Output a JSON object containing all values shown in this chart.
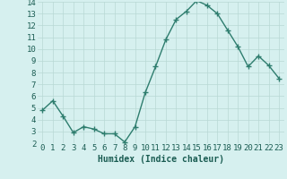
{
  "xlabel": "Humidex (Indice chaleur)",
  "x": [
    0,
    1,
    2,
    3,
    4,
    5,
    6,
    7,
    8,
    9,
    10,
    11,
    12,
    13,
    14,
    15,
    16,
    17,
    18,
    19,
    20,
    21,
    22,
    23
  ],
  "y": [
    4.8,
    5.6,
    4.3,
    2.9,
    3.4,
    3.2,
    2.8,
    2.8,
    2.1,
    3.4,
    6.3,
    8.5,
    10.8,
    12.5,
    13.2,
    14.1,
    13.7,
    13.0,
    11.6,
    10.2,
    8.5,
    9.4,
    8.6,
    7.5
  ],
  "line_color": "#2e7d6e",
  "marker": "+",
  "marker_size": 4,
  "bg_color": "#d6f0ef",
  "grid_color": "#b8d8d4",
  "ylim": [
    2,
    14
  ],
  "yticks": [
    2,
    3,
    4,
    5,
    6,
    7,
    8,
    9,
    10,
    11,
    12,
    13,
    14
  ],
  "xticks": [
    0,
    1,
    2,
    3,
    4,
    5,
    6,
    7,
    8,
    9,
    10,
    11,
    12,
    13,
    14,
    15,
    16,
    17,
    18,
    19,
    20,
    21,
    22,
    23
  ],
  "xlabel_fontsize": 7,
  "tick_fontsize": 6.5,
  "axis_label_color": "#1a5c52",
  "line_width": 1.0
}
